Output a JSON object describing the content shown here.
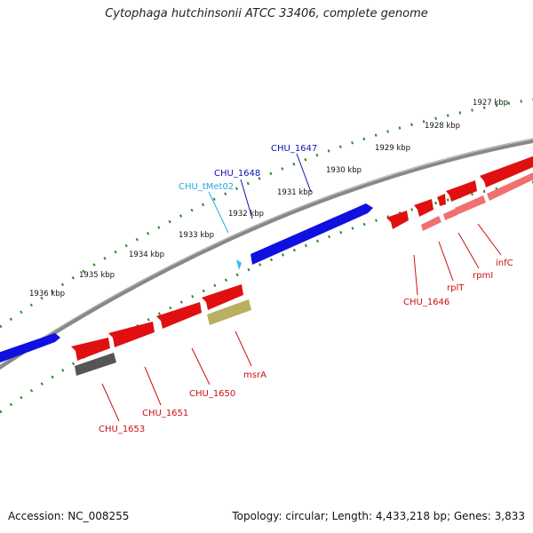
{
  "title": "Cytophaga hutchinsonii ATCC 33406, complete genome",
  "footer": {
    "accession": "Accession: NC_008255",
    "summary": "Topology: circular; Length: 4,433,218 bp; Genes: 3,833"
  },
  "colors": {
    "forward_cds": "#1010e0",
    "reverse_cds": "#e01010",
    "reverse_cds_light": "#f07070",
    "trna": "#33bbee",
    "ncrna": "#b8b060",
    "gray_feature": "#555555",
    "backbone": "#888888",
    "ticks": "#2a8a2a",
    "label_forward": "#1010b0",
    "label_reverse": "#cc1010",
    "label_trna": "#22aadd"
  },
  "scale_labels": [
    "1927 kbp",
    "1928 kbp",
    "1929 kbp",
    "1930 kbp",
    "1931 kbp",
    "1932 kbp",
    "1933 kbp",
    "1934 kbp",
    "1935 kbp",
    "1936 kbp"
  ],
  "feature_labels": [
    {
      "text": "CHU_1647",
      "kind": "forward"
    },
    {
      "text": "CHU_1648",
      "kind": "forward"
    },
    {
      "text": "CHU_tMet02",
      "kind": "trna"
    },
    {
      "text": "CHU_1646",
      "kind": "reverse"
    },
    {
      "text": "rplT",
      "kind": "reverse"
    },
    {
      "text": "rpmI",
      "kind": "reverse"
    },
    {
      "text": "infC",
      "kind": "reverse"
    },
    {
      "text": "msrA",
      "kind": "reverse"
    },
    {
      "text": "CHU_1650",
      "kind": "reverse"
    },
    {
      "text": "CHU_1651",
      "kind": "reverse"
    },
    {
      "text": "CHU_1653",
      "kind": "reverse"
    }
  ]
}
